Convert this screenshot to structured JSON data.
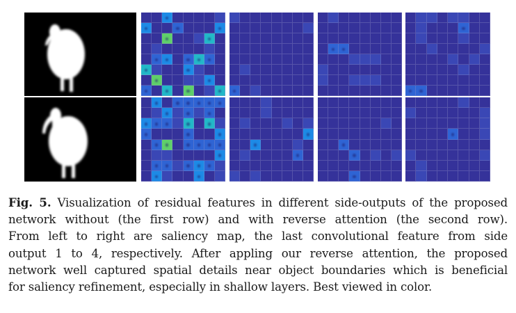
{
  "figure": {
    "label": "Fig. 5.",
    "caption_lines": [
      " Visualization of residual features in different side-outputs of the proposed",
      "network without (the first row) and with reverse attention (the second row).",
      "From left to right are saliency map, the last convolutional feature from side",
      "output 1 to 4, respectively. After appling our reverse attention, the proposed",
      "network well captured spatial details near object boundaries which is beneficial",
      "for saliency refinement, especially in shallow layers. Best viewed in color."
    ],
    "rows": [
      {
        "name": "without-reverse-attention",
        "description": "the first row"
      },
      {
        "name": "with-reverse-attention",
        "description": "the second row"
      }
    ],
    "columns": [
      {
        "name": "saliency-map"
      },
      {
        "name": "side-output-1"
      },
      {
        "name": "side-output-2"
      },
      {
        "name": "side-output-3"
      },
      {
        "name": "side-output-4"
      }
    ],
    "colormap": [
      "#35329a",
      "#3a47b5",
      "#2f64d4",
      "#1d8ae6",
      "#22b8c8",
      "#5fd06a"
    ],
    "heatmaps": {
      "r0c1": [
        [
          0,
          0,
          3,
          0,
          0,
          0,
          0,
          1
        ],
        [
          3,
          0,
          0,
          2,
          0,
          0,
          0,
          3
        ],
        [
          0,
          0,
          5,
          0,
          0,
          1,
          4,
          0
        ],
        [
          0,
          1,
          0,
          0,
          0,
          0,
          1,
          0
        ],
        [
          0,
          2,
          3,
          0,
          2,
          4,
          2,
          0
        ],
        [
          4,
          1,
          0,
          0,
          3,
          1,
          0,
          0
        ],
        [
          0,
          5,
          0,
          0,
          1,
          1,
          3,
          0
        ],
        [
          2,
          0,
          4,
          0,
          5,
          0,
          1,
          4
        ]
      ],
      "r1c1": [
        [
          0,
          3,
          0,
          2,
          2,
          2,
          2,
          2
        ],
        [
          0,
          1,
          3,
          1,
          2,
          1,
          2,
          0
        ],
        [
          3,
          2,
          2,
          1,
          4,
          0,
          4,
          1
        ],
        [
          2,
          0,
          0,
          0,
          2,
          0,
          0,
          3
        ],
        [
          0,
          2,
          5,
          0,
          2,
          2,
          2,
          2
        ],
        [
          0,
          1,
          1,
          0,
          0,
          0,
          0,
          3
        ],
        [
          0,
          2,
          2,
          1,
          2,
          3,
          2,
          1
        ],
        [
          0,
          3,
          1,
          0,
          0,
          3,
          0,
          1
        ]
      ],
      "r0c2": [
        [
          1,
          0,
          0,
          0,
          0,
          0,
          0,
          0
        ],
        [
          0,
          0,
          0,
          0,
          0,
          0,
          0,
          1
        ],
        [
          0,
          0,
          0,
          0,
          0,
          0,
          0,
          0
        ],
        [
          0,
          0,
          0,
          0,
          0,
          0,
          0,
          0
        ],
        [
          0,
          0,
          0,
          0,
          0,
          0,
          0,
          0
        ],
        [
          0,
          1,
          0,
          0,
          0,
          0,
          0,
          0
        ],
        [
          0,
          0,
          0,
          0,
          0,
          0,
          0,
          0
        ],
        [
          2,
          0,
          1,
          0,
          0,
          0,
          0,
          0
        ]
      ],
      "r1c2": [
        [
          0,
          0,
          0,
          1,
          0,
          0,
          0,
          0
        ],
        [
          0,
          0,
          0,
          1,
          0,
          0,
          0,
          0
        ],
        [
          0,
          1,
          0,
          0,
          0,
          1,
          0,
          1
        ],
        [
          0,
          0,
          0,
          0,
          0,
          0,
          0,
          3
        ],
        [
          0,
          0,
          3,
          0,
          0,
          0,
          1,
          0
        ],
        [
          0,
          1,
          0,
          0,
          0,
          0,
          2,
          0
        ],
        [
          0,
          0,
          0,
          0,
          0,
          0,
          0,
          0
        ],
        [
          1,
          0,
          1,
          0,
          0,
          0,
          0,
          0
        ]
      ],
      "r0c3": [
        [
          0,
          1,
          0,
          0,
          0,
          0,
          0,
          0
        ],
        [
          0,
          0,
          0,
          0,
          0,
          0,
          0,
          0
        ],
        [
          0,
          0,
          0,
          0,
          0,
          0,
          0,
          0
        ],
        [
          0,
          2,
          2,
          0,
          0,
          0,
          0,
          0
        ],
        [
          0,
          0,
          0,
          1,
          1,
          1,
          0,
          0
        ],
        [
          1,
          0,
          0,
          0,
          0,
          0,
          0,
          0
        ],
        [
          1,
          0,
          0,
          1,
          1,
          1,
          0,
          0
        ],
        [
          0,
          0,
          0,
          0,
          0,
          0,
          0,
          0
        ]
      ],
      "r1c3": [
        [
          0,
          0,
          0,
          0,
          0,
          0,
          0,
          0
        ],
        [
          0,
          0,
          0,
          0,
          0,
          0,
          0,
          0
        ],
        [
          0,
          0,
          0,
          0,
          0,
          0,
          1,
          0
        ],
        [
          0,
          0,
          0,
          0,
          0,
          0,
          0,
          0
        ],
        [
          0,
          0,
          2,
          0,
          0,
          0,
          0,
          0
        ],
        [
          0,
          0,
          0,
          2,
          0,
          1,
          0,
          1
        ],
        [
          0,
          0,
          0,
          0,
          0,
          0,
          0,
          0
        ],
        [
          0,
          0,
          0,
          2,
          0,
          0,
          0,
          0
        ]
      ],
      "r0c4": [
        [
          0,
          1,
          1,
          0,
          1,
          1,
          0,
          0
        ],
        [
          0,
          1,
          0,
          0,
          0,
          2,
          0,
          0
        ],
        [
          0,
          1,
          0,
          0,
          0,
          1,
          0,
          0
        ],
        [
          0,
          0,
          1,
          0,
          0,
          0,
          0,
          1
        ],
        [
          0,
          0,
          0,
          0,
          1,
          0,
          1,
          0
        ],
        [
          0,
          0,
          0,
          0,
          0,
          1,
          0,
          0
        ],
        [
          0,
          0,
          0,
          0,
          0,
          0,
          0,
          0
        ],
        [
          2,
          2,
          0,
          0,
          0,
          0,
          0,
          0
        ]
      ],
      "r1c4": [
        [
          0,
          0,
          0,
          0,
          0,
          1,
          0,
          0
        ],
        [
          1,
          0,
          0,
          0,
          0,
          0,
          0,
          1
        ],
        [
          0,
          0,
          0,
          0,
          0,
          0,
          0,
          1
        ],
        [
          0,
          0,
          0,
          0,
          2,
          0,
          0,
          1
        ],
        [
          0,
          0,
          0,
          0,
          0,
          0,
          0,
          0
        ],
        [
          1,
          0,
          0,
          0,
          0,
          0,
          0,
          1
        ],
        [
          0,
          1,
          0,
          0,
          0,
          0,
          0,
          0
        ],
        [
          0,
          1,
          0,
          0,
          0,
          0,
          0,
          0
        ]
      ]
    }
  }
}
